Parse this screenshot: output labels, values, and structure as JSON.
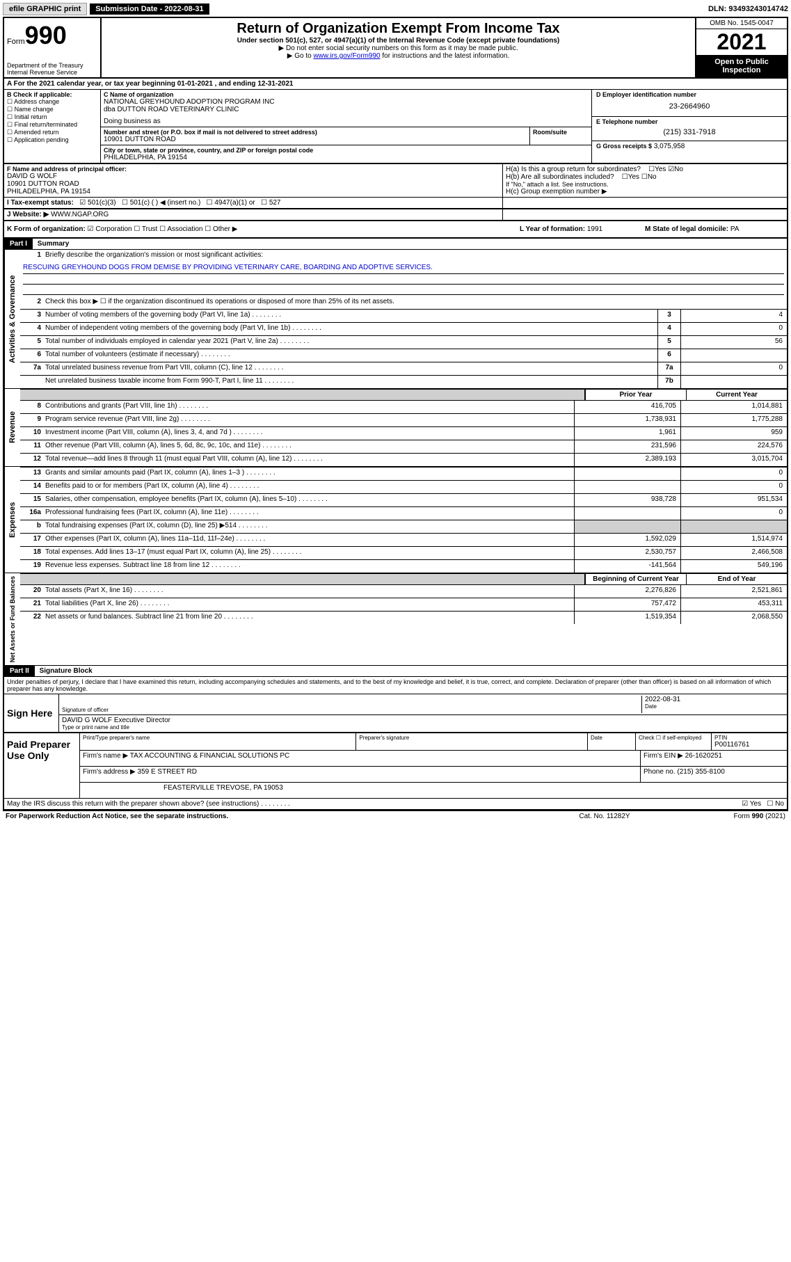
{
  "topbar": {
    "efile": "efile GRAPHIC print",
    "sub_label": "Submission Date - 2022-08-31",
    "dln": "DLN: 93493243014742"
  },
  "header": {
    "form_prefix": "Form",
    "form_num": "990",
    "title": "Return of Organization Exempt From Income Tax",
    "subtitle": "Under section 501(c), 527, or 4947(a)(1) of the Internal Revenue Code (except private foundations)",
    "note1": "▶ Do not enter social security numbers on this form as it may be made public.",
    "note2_pre": "▶ Go to ",
    "note2_link": "www.irs.gov/Form990",
    "note2_post": " for instructions and the latest information.",
    "dept": "Department of the Treasury\nInternal Revenue Service",
    "omb": "OMB No. 1545-0047",
    "year": "2021",
    "open": "Open to Public Inspection"
  },
  "section_a": "A For the 2021 calendar year, or tax year beginning 01-01-2021   , and ending 12-31-2021",
  "col_b": {
    "header": "B Check if applicable:",
    "opts": [
      "Address change",
      "Name change",
      "Initial return",
      "Final return/terminated",
      "Amended return",
      "Application pending"
    ]
  },
  "entity": {
    "c_label": "C Name of organization",
    "name": "NATIONAL GREYHOUND ADOPTION PROGRAM INC",
    "dba_label": "dba DUTTON ROAD VETERINARY CLINIC",
    "dba2": "Doing business as",
    "street_label": "Number and street (or P.O. box if mail is not delivered to street address)",
    "room_label": "Room/suite",
    "street": "10901 DUTTON ROAD",
    "city_label": "City or town, state or province, country, and ZIP or foreign postal code",
    "city": "PHILADELPHIA, PA  19154",
    "d_label": "D Employer identification number",
    "ein": "23-2664960",
    "e_label": "E Telephone number",
    "phone": "(215) 331-7918",
    "g_label": "G Gross receipts $",
    "gross": "3,075,958"
  },
  "officer": {
    "f_label": "F  Name and address of principal officer:",
    "name": "DAVID G WOLF",
    "street": "10901 DUTTON ROAD",
    "city": "PHILADELPHIA, PA  19154"
  },
  "h": {
    "ha": "H(a)  Is this a group return for subordinates?",
    "hb": "H(b)  Are all subordinates included?",
    "hb_note": "If \"No,\" attach a list. See instructions.",
    "hc": "H(c)  Group exemption number ▶",
    "yes": "Yes",
    "no": "No"
  },
  "i": {
    "label": "I  Tax-exempt status:",
    "o1": "501(c)(3)",
    "o2": "501(c) (   ) ◀ (insert no.)",
    "o3": "4947(a)(1) or",
    "o4": "527"
  },
  "j": {
    "label": "J  Website: ▶",
    "val": "WWW.NGAP.ORG"
  },
  "k": {
    "label": "K Form of organization:",
    "corp": "Corporation",
    "trust": "Trust",
    "assoc": "Association",
    "other": "Other ▶"
  },
  "l": {
    "label": "L Year of formation:",
    "val": "1991"
  },
  "m": {
    "label": "M State of legal domicile:",
    "val": "PA"
  },
  "part1": {
    "hdr": "Part I",
    "title": "Summary",
    "line1": "Briefly describe the organization's mission or most significant activities:",
    "mission": "RESCUING GREYHOUND DOGS FROM DEMISE BY PROVIDING VETERINARY CARE, BOARDING AND ADOPTIVE SERVICES.",
    "line2": "Check this box ▶ ☐  if the organization discontinued its operations or disposed of more than 25% of its net assets.",
    "tabs": {
      "gov": "Activities & Governance",
      "rev": "Revenue",
      "exp": "Expenses",
      "net": "Net Assets or Fund Balances"
    },
    "col_prior": "Prior Year",
    "col_curr": "Current Year",
    "col_beg": "Beginning of Current Year",
    "col_end": "End of Year",
    "gov_lines": [
      {
        "num": "3",
        "desc": "Number of voting members of the governing body (Part VI, line 1a)",
        "box": "3",
        "val": "4"
      },
      {
        "num": "4",
        "desc": "Number of independent voting members of the governing body (Part VI, line 1b)",
        "box": "4",
        "val": "0"
      },
      {
        "num": "5",
        "desc": "Total number of individuals employed in calendar year 2021 (Part V, line 2a)",
        "box": "5",
        "val": "56"
      },
      {
        "num": "6",
        "desc": "Total number of volunteers (estimate if necessary)",
        "box": "6",
        "val": ""
      },
      {
        "num": "7a",
        "desc": "Total unrelated business revenue from Part VIII, column (C), line 12",
        "box": "7a",
        "val": "0"
      },
      {
        "num": "",
        "desc": "Net unrelated business taxable income from Form 990-T, Part I, line 11",
        "box": "7b",
        "val": ""
      }
    ],
    "rev_lines": [
      {
        "num": "8",
        "desc": "Contributions and grants (Part VIII, line 1h)",
        "prior": "416,705",
        "curr": "1,014,881"
      },
      {
        "num": "9",
        "desc": "Program service revenue (Part VIII, line 2g)",
        "prior": "1,738,931",
        "curr": "1,775,288"
      },
      {
        "num": "10",
        "desc": "Investment income (Part VIII, column (A), lines 3, 4, and 7d )",
        "prior": "1,961",
        "curr": "959"
      },
      {
        "num": "11",
        "desc": "Other revenue (Part VIII, column (A), lines 5, 6d, 8c, 9c, 10c, and 11e)",
        "prior": "231,596",
        "curr": "224,576"
      },
      {
        "num": "12",
        "desc": "Total revenue—add lines 8 through 11 (must equal Part VIII, column (A), line 12)",
        "prior": "2,389,193",
        "curr": "3,015,704"
      }
    ],
    "exp_lines": [
      {
        "num": "13",
        "desc": "Grants and similar amounts paid (Part IX, column (A), lines 1–3 )",
        "prior": "",
        "curr": "0"
      },
      {
        "num": "14",
        "desc": "Benefits paid to or for members (Part IX, column (A), line 4)",
        "prior": "",
        "curr": "0"
      },
      {
        "num": "15",
        "desc": "Salaries, other compensation, employee benefits (Part IX, column (A), lines 5–10)",
        "prior": "938,728",
        "curr": "951,534"
      },
      {
        "num": "16a",
        "desc": "Professional fundraising fees (Part IX, column (A), line 11e)",
        "prior": "",
        "curr": "0"
      },
      {
        "num": "b",
        "desc": "Total fundraising expenses (Part IX, column (D), line 25) ▶514",
        "prior": "shade",
        "curr": "shade"
      },
      {
        "num": "17",
        "desc": "Other expenses (Part IX, column (A), lines 11a–11d, 11f–24e)",
        "prior": "1,592,029",
        "curr": "1,514,974"
      },
      {
        "num": "18",
        "desc": "Total expenses. Add lines 13–17 (must equal Part IX, column (A), line 25)",
        "prior": "2,530,757",
        "curr": "2,466,508"
      },
      {
        "num": "19",
        "desc": "Revenue less expenses. Subtract line 18 from line 12",
        "prior": "-141,564",
        "curr": "549,196"
      }
    ],
    "net_lines": [
      {
        "num": "20",
        "desc": "Total assets (Part X, line 16)",
        "prior": "2,276,826",
        "curr": "2,521,861"
      },
      {
        "num": "21",
        "desc": "Total liabilities (Part X, line 26)",
        "prior": "757,472",
        "curr": "453,311"
      },
      {
        "num": "22",
        "desc": "Net assets or fund balances. Subtract line 21 from line 20",
        "prior": "1,519,354",
        "curr": "2,068,550"
      }
    ]
  },
  "part2": {
    "hdr": "Part II",
    "title": "Signature Block",
    "decl": "Under penalties of perjury, I declare that I have examined this return, including accompanying schedules and statements, and to the best of my knowledge and belief, it is true, correct, and complete. Declaration of preparer (other than officer) is based on all information of which preparer has any knowledge."
  },
  "sign": {
    "label": "Sign Here",
    "sig_of_officer": "Signature of officer",
    "date_label": "Date",
    "date": "2022-08-31",
    "name": "DAVID G WOLF  Executive Director",
    "name_caption": "Type or print name and title"
  },
  "paid": {
    "label": "Paid Preparer Use Only",
    "col1": "Print/Type preparer's name",
    "col2": "Preparer's signature",
    "col3": "Date",
    "col4a": "Check ☐ if self-employed",
    "col5": "PTIN",
    "ptin": "P00116761",
    "firm_name_lbl": "Firm's name    ▶",
    "firm_name": "TAX ACCOUNTING & FINANCIAL SOLUTIONS PC",
    "firm_ein_lbl": "Firm's EIN ▶",
    "firm_ein": "26-1620251",
    "firm_addr_lbl": "Firm's address ▶",
    "firm_addr1": "359 E STREET RD",
    "firm_addr2": "FEASTERVILLE TREVOSE, PA  19053",
    "phone_lbl": "Phone no.",
    "phone": "(215) 355-8100"
  },
  "discuss": {
    "q": "May the IRS discuss this return with the preparer shown above? (see instructions)",
    "yes": "Yes",
    "no": "No"
  },
  "footer": {
    "left": "For Paperwork Reduction Act Notice, see the separate instructions.",
    "mid": "Cat. No. 11282Y",
    "right_pre": "Form ",
    "right_bold": "990",
    "right_post": " (2021)"
  }
}
